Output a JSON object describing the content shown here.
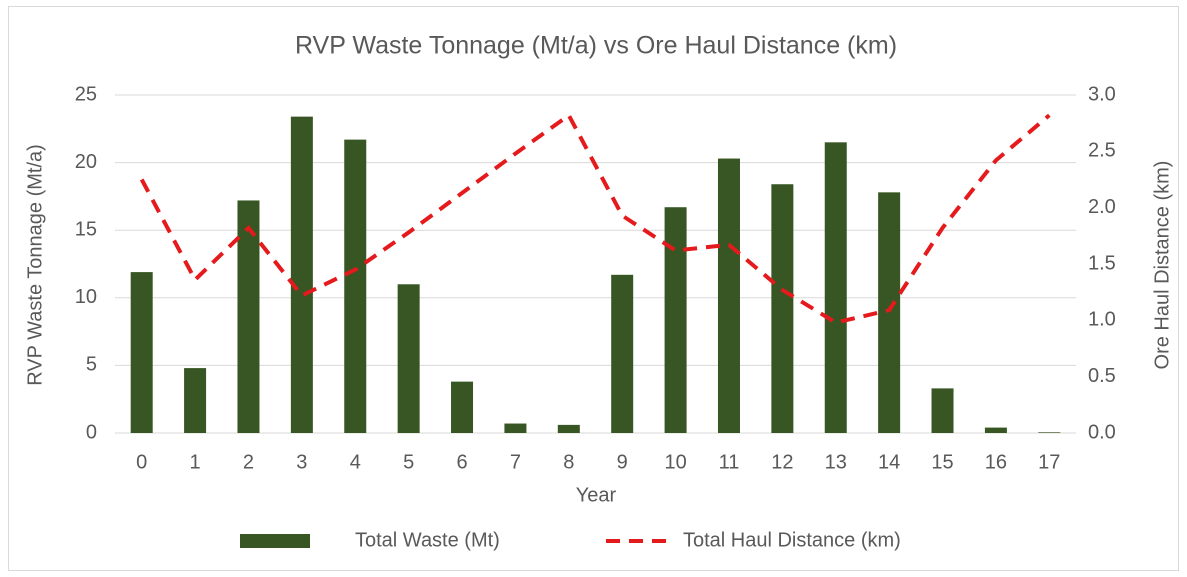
{
  "chart_data": {
    "type": "bar",
    "title": "RVP Waste Tonnage (Mt/a) vs Ore Haul Distance (km)",
    "x_label": "Year",
    "y_label": "RVP Waste Tonnage (Mt/a)",
    "y2_label": "Ore Haul Distance (km)",
    "categories": [
      "0",
      "1",
      "2",
      "3",
      "4",
      "5",
      "6",
      "7",
      "8",
      "9",
      "10",
      "11",
      "12",
      "13",
      "14",
      "15",
      "16",
      "17"
    ],
    "series": [
      {
        "name": "Total Waste (Mt)",
        "type": "bar",
        "color": "#375623",
        "values": [
          11.9,
          4.8,
          17.2,
          23.4,
          21.7,
          11.0,
          3.8,
          0.7,
          0.6,
          11.7,
          16.7,
          20.3,
          18.4,
          21.5,
          17.8,
          3.3,
          0.4,
          0.05
        ]
      },
      {
        "name": "Total Haul Distance (km)",
        "type": "line",
        "axis": "y2",
        "color": "#e41a1c",
        "values": [
          2.25,
          1.36,
          1.82,
          1.22,
          1.45,
          1.78,
          2.13,
          2.48,
          2.82,
          1.93,
          1.62,
          1.67,
          1.27,
          0.98,
          1.09,
          1.82,
          2.42,
          2.82
        ]
      }
    ],
    "ylim": [
      0,
      25
    ],
    "yticks": [
      0,
      5,
      10,
      15,
      20,
      25
    ],
    "y2lim": [
      0,
      3
    ],
    "y2ticks": [
      {
        "value": 0,
        "label": "0.0"
      },
      0.5,
      {
        "value": 1,
        "label": "1.0"
      },
      1.5,
      {
        "value": 2,
        "label": "2.0"
      },
      2.5,
      {
        "value": 3,
        "label": "3.0"
      }
    ],
    "grid": true,
    "legend": "bottom"
  }
}
